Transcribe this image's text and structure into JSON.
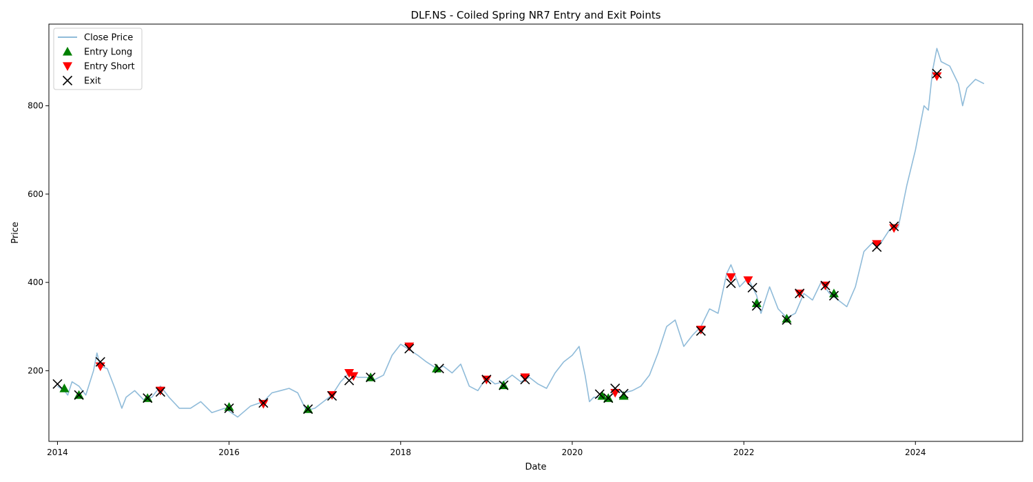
{
  "chart_data": {
    "type": "line",
    "title": "DLF.NS - Coiled Spring NR7 Entry and Exit Points",
    "xlabel": "Date",
    "ylabel": "Price",
    "xlim": [
      2013.9,
      2025.25
    ],
    "ylim": [
      40,
      985
    ],
    "x_ticks": [
      2014,
      2016,
      2018,
      2020,
      2022,
      2024
    ],
    "x_tick_labels": [
      "2014",
      "2016",
      "2018",
      "2020",
      "2022",
      "2024"
    ],
    "y_ticks": [
      200,
      400,
      600,
      800
    ],
    "y_tick_labels": [
      "200",
      "400",
      "600",
      "800"
    ],
    "grid": false,
    "legend_position": "top-left",
    "legend": [
      "Close Price",
      "Entry Long",
      "Entry Short",
      "Exit"
    ],
    "colors": {
      "close": "#1f77b4",
      "entry_long": "#008000",
      "entry_short": "#ff0000",
      "exit": "#000000"
    },
    "series": [
      {
        "name": "Close Price",
        "x": [
          2014.0,
          2014.08,
          2014.12,
          2014.17,
          2014.25,
          2014.33,
          2014.42,
          2014.46,
          2014.5,
          2014.58,
          2014.67,
          2014.75,
          2014.8,
          2014.9,
          2015.0,
          2015.1,
          2015.2,
          2015.3,
          2015.42,
          2015.55,
          2015.67,
          2015.8,
          2015.95,
          2016.1,
          2016.25,
          2016.4,
          2016.5,
          2016.6,
          2016.7,
          2016.8,
          2016.9,
          2017.0,
          2017.1,
          2017.2,
          2017.3,
          2017.4,
          2017.5,
          2017.6,
          2017.7,
          2017.8,
          2017.9,
          2018.0,
          2018.08,
          2018.2,
          2018.3,
          2018.42,
          2018.5,
          2018.6,
          2018.7,
          2018.8,
          2018.9,
          2019.0,
          2019.1,
          2019.2,
          2019.3,
          2019.4,
          2019.5,
          2019.6,
          2019.7,
          2019.8,
          2019.9,
          2020.0,
          2020.08,
          2020.15,
          2020.2,
          2020.25,
          2020.3,
          2020.4,
          2020.5,
          2020.6,
          2020.7,
          2020.8,
          2020.9,
          2021.0,
          2021.1,
          2021.2,
          2021.3,
          2021.4,
          2021.5,
          2021.6,
          2021.7,
          2021.8,
          2021.85,
          2021.95,
          2022.05,
          2022.15,
          2022.2,
          2022.3,
          2022.4,
          2022.5,
          2022.6,
          2022.7,
          2022.8,
          2022.9,
          2023.0,
          2023.1,
          2023.2,
          2023.3,
          2023.4,
          2023.5,
          2023.6,
          2023.7,
          2023.8,
          2023.9,
          2024.0,
          2024.1,
          2024.15,
          2024.2,
          2024.25,
          2024.3,
          2024.4,
          2024.5,
          2024.55,
          2024.6,
          2024.7,
          2024.8
        ],
        "y": [
          165,
          155,
          145,
          175,
          165,
          145,
          200,
          240,
          210,
          205,
          160,
          115,
          140,
          155,
          135,
          140,
          165,
          140,
          115,
          115,
          130,
          105,
          115,
          95,
          120,
          130,
          150,
          155,
          160,
          150,
          110,
          115,
          130,
          145,
          175,
          195,
          185,
          185,
          180,
          190,
          235,
          260,
          250,
          235,
          220,
          205,
          210,
          195,
          215,
          165,
          155,
          185,
          170,
          175,
          190,
          175,
          185,
          170,
          160,
          195,
          220,
          235,
          255,
          190,
          130,
          140,
          140,
          135,
          155,
          150,
          155,
          165,
          190,
          240,
          300,
          315,
          255,
          280,
          300,
          340,
          330,
          420,
          440,
          390,
          410,
          370,
          330,
          390,
          340,
          320,
          330,
          375,
          360,
          400,
          375,
          360,
          345,
          390,
          470,
          490,
          490,
          520,
          525,
          620,
          700,
          800,
          790,
          880,
          930,
          900,
          890,
          850,
          800,
          840,
          860,
          850
        ]
      },
      {
        "name": "Entry Long",
        "x": [
          2014.08,
          2014.25,
          2015.05,
          2016.0,
          2016.92,
          2017.65,
          2018.42,
          2019.2,
          2020.35,
          2020.42,
          2020.6,
          2022.15,
          2022.5,
          2023.05
        ],
        "y": [
          160,
          145,
          138,
          118,
          113,
          185,
          205,
          167,
          143,
          138,
          143,
          353,
          318,
          375
        ]
      },
      {
        "name": "Entry Short",
        "x": [
          2014.5,
          2015.2,
          2016.4,
          2017.2,
          2017.4,
          2017.45,
          2018.1,
          2019.0,
          2019.45,
          2020.5,
          2021.5,
          2021.85,
          2022.05,
          2022.65,
          2022.95,
          2023.55,
          2023.75,
          2024.25
        ],
        "y": [
          210,
          155,
          125,
          145,
          195,
          188,
          255,
          180,
          185,
          150,
          293,
          412,
          405,
          375,
          393,
          487,
          523,
          867
        ]
      },
      {
        "name": "Exit",
        "x": [
          2014.0,
          2014.25,
          2014.5,
          2015.05,
          2015.2,
          2016.0,
          2016.4,
          2016.92,
          2017.2,
          2017.4,
          2017.65,
          2018.1,
          2018.45,
          2019.0,
          2019.2,
          2019.45,
          2020.32,
          2020.42,
          2020.5,
          2020.6,
          2021.5,
          2021.85,
          2022.1,
          2022.15,
          2022.5,
          2022.65,
          2022.95,
          2023.05,
          2023.55,
          2023.75,
          2024.25
        ],
        "y": [
          170,
          145,
          220,
          138,
          152,
          115,
          127,
          113,
          143,
          178,
          185,
          250,
          205,
          180,
          167,
          180,
          147,
          138,
          160,
          148,
          290,
          398,
          388,
          347,
          315,
          375,
          393,
          370,
          480,
          527,
          873
        ]
      }
    ]
  }
}
